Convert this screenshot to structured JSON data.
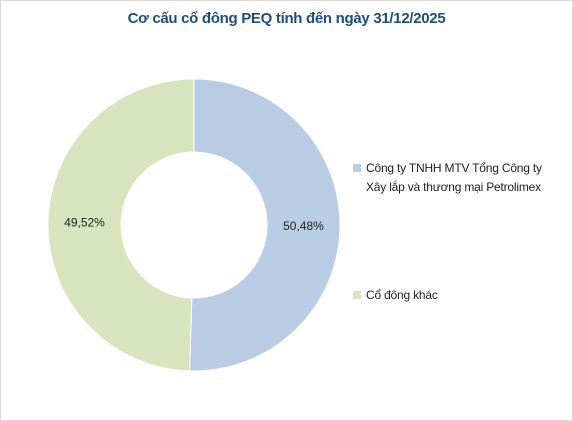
{
  "chart_data": {
    "type": "donut",
    "title": "Cơ cấu cổ đông PEQ tính đến ngày 31/12/2025",
    "categories": [
      "Công ty TNHH MTV Tổng Công ty Xây lắp và thương mại Petrolimex",
      "Cổ đông khác"
    ],
    "values": [
      50.48,
      49.52
    ],
    "value_labels": [
      "50,48%",
      "49,52%"
    ],
    "colors": [
      "#b8cce4",
      "#d7e4bd"
    ],
    "legend": "right"
  }
}
